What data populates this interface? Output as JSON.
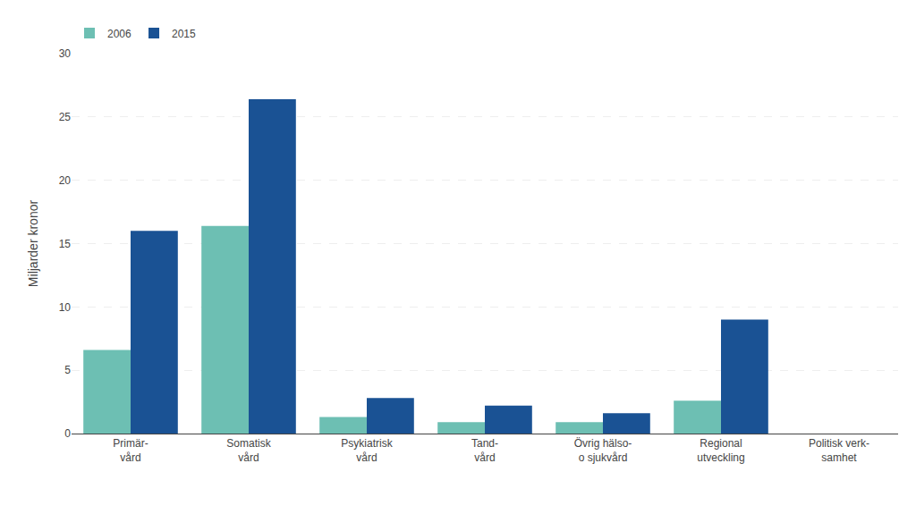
{
  "chart_data": {
    "type": "bar",
    "categories": [
      "Primär-\nvård",
      "Somatisk\nvård",
      "Psykiatrisk\nvård",
      "Tand-\nvård",
      "Övrig hälso-\no sjukvård",
      "Regional\nutveckling",
      "Politisk verk-\nsamhet"
    ],
    "series": [
      {
        "name": "2006",
        "color": "#6dbfb3",
        "values": [
          6.6,
          16.4,
          1.3,
          0.9,
          0.9,
          2.6,
          0.0
        ]
      },
      {
        "name": "2015",
        "color": "#1a5294",
        "values": [
          16.0,
          26.4,
          2.8,
          2.2,
          1.6,
          9.0,
          0.0
        ]
      }
    ],
    "ylabel": "Miljarder kronor",
    "ylim": [
      0,
      30
    ],
    "yticks": [
      0,
      5,
      10,
      15,
      20,
      25,
      30
    ],
    "grid": true,
    "legend": "upper left"
  }
}
